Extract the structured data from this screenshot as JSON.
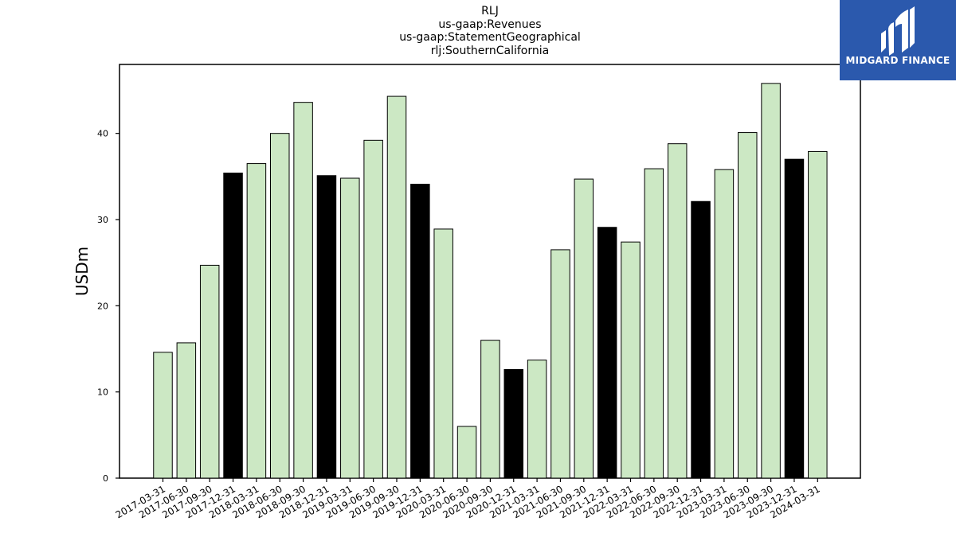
{
  "header": {
    "title_lines": [
      "RLJ",
      "us-gaap:Revenues",
      "us-gaap:StatementGeographical",
      "rlj:SouthernCalifornia"
    ]
  },
  "brand": {
    "name": "MIDGARD FINANCE",
    "icon": "midgard-logo-icon",
    "background": "#2b59ad"
  },
  "colors": {
    "regular_bar": "#cce8c4",
    "year_end_bar": "#000000",
    "bar_edge": "#000000"
  },
  "chart_data": {
    "type": "bar",
    "ylabel": "USDm",
    "xlabel": "",
    "ylim": [
      0,
      48
    ],
    "yticks": [
      0,
      10,
      20,
      30,
      40
    ],
    "grid": false,
    "legend": "none",
    "categories": [
      "2017-03-31",
      "2017-06-30",
      "2017-09-30",
      "2017-12-31",
      "2018-03-31",
      "2018-06-30",
      "2018-09-30",
      "2018-12-31",
      "2019-03-31",
      "2019-06-30",
      "2019-09-30",
      "2019-12-31",
      "2020-03-31",
      "2020-06-30",
      "2020-09-30",
      "2020-12-31",
      "2021-03-31",
      "2021-06-30",
      "2021-09-30",
      "2021-12-31",
      "2022-03-31",
      "2022-06-30",
      "2022-09-30",
      "2022-12-31",
      "2023-03-31",
      "2023-06-30",
      "2023-09-30",
      "2023-12-31",
      "2024-03-31"
    ],
    "values": [
      14.6,
      15.7,
      24.7,
      35.4,
      36.5,
      40.0,
      43.6,
      35.1,
      34.8,
      39.2,
      44.3,
      34.1,
      28.9,
      6.0,
      16.0,
      12.6,
      13.7,
      26.5,
      34.7,
      29.1,
      27.4,
      35.9,
      38.8,
      32.1,
      35.8,
      40.1,
      45.8,
      37.0,
      37.9
    ]
  }
}
